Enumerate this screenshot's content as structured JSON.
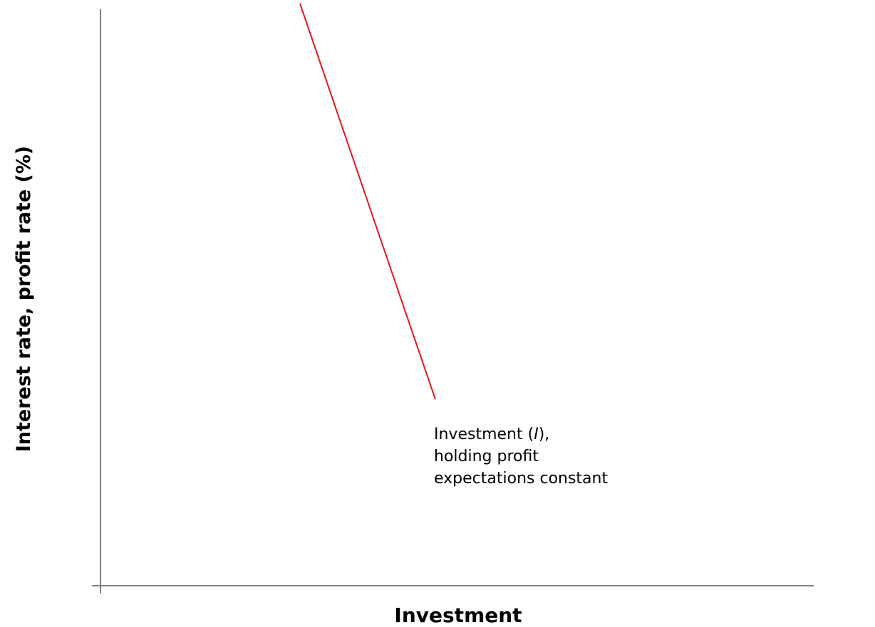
{
  "chart_data": {
    "type": "line",
    "title": "",
    "xlabel": "Investment",
    "ylabel": "Interest rate, profit rate (%)",
    "grid": false,
    "ticks": false,
    "legend": "none",
    "series": [
      {
        "label_lines": [
          {
            "text": "Investment (",
            "italic": "I",
            "suffix": "),"
          },
          {
            "text": "holding profit"
          },
          {
            "text": "expectations constant"
          }
        ],
        "color": "#e8161b",
        "shape": "downward-sloping straight line",
        "x": [
          0.28,
          0.47
        ],
        "y": [
          1.0,
          0.32
        ]
      }
    ],
    "axis_color": "#808080"
  }
}
